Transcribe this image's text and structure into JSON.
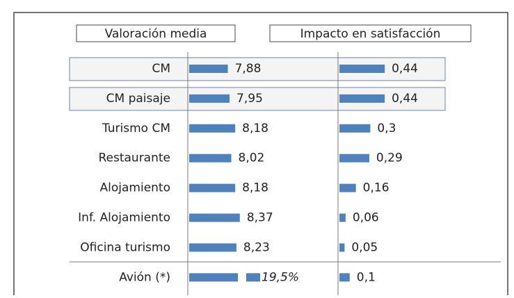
{
  "chart_data": {
    "type": "bar",
    "categories": [
      "CM",
      "CM paisaje",
      "Turismo CM",
      "Restaurante",
      "Alojamiento",
      "Inf. Alojamiento",
      "Oficina turismo",
      "Avión (*)"
    ],
    "highlighted": [
      0,
      1
    ],
    "series": [
      {
        "name": "Valoración media",
        "color": "#4f81bd",
        "xlim": [
          6.3,
          9
        ],
        "values": [
          7.88,
          7.95,
          8.18,
          8.02,
          8.18,
          8.37,
          8.23,
          19.5
        ],
        "value_labels": [
          "7,88",
          "7,95",
          "8,18",
          "8,02",
          "8,18",
          "8,37",
          "8,23",
          "19,5%"
        ]
      },
      {
        "name": "Impacto en satisfacción",
        "color": "#4f81bd",
        "xlim": [
          0,
          0.5
        ],
        "values": [
          0.44,
          0.44,
          0.3,
          0.29,
          0.16,
          0.06,
          0.05,
          0.1
        ],
        "value_labels": [
          "0,44",
          "0,44",
          "0,3",
          "0,29",
          "0,16",
          "0,06",
          "0,05",
          "0,1"
        ]
      }
    ]
  }
}
